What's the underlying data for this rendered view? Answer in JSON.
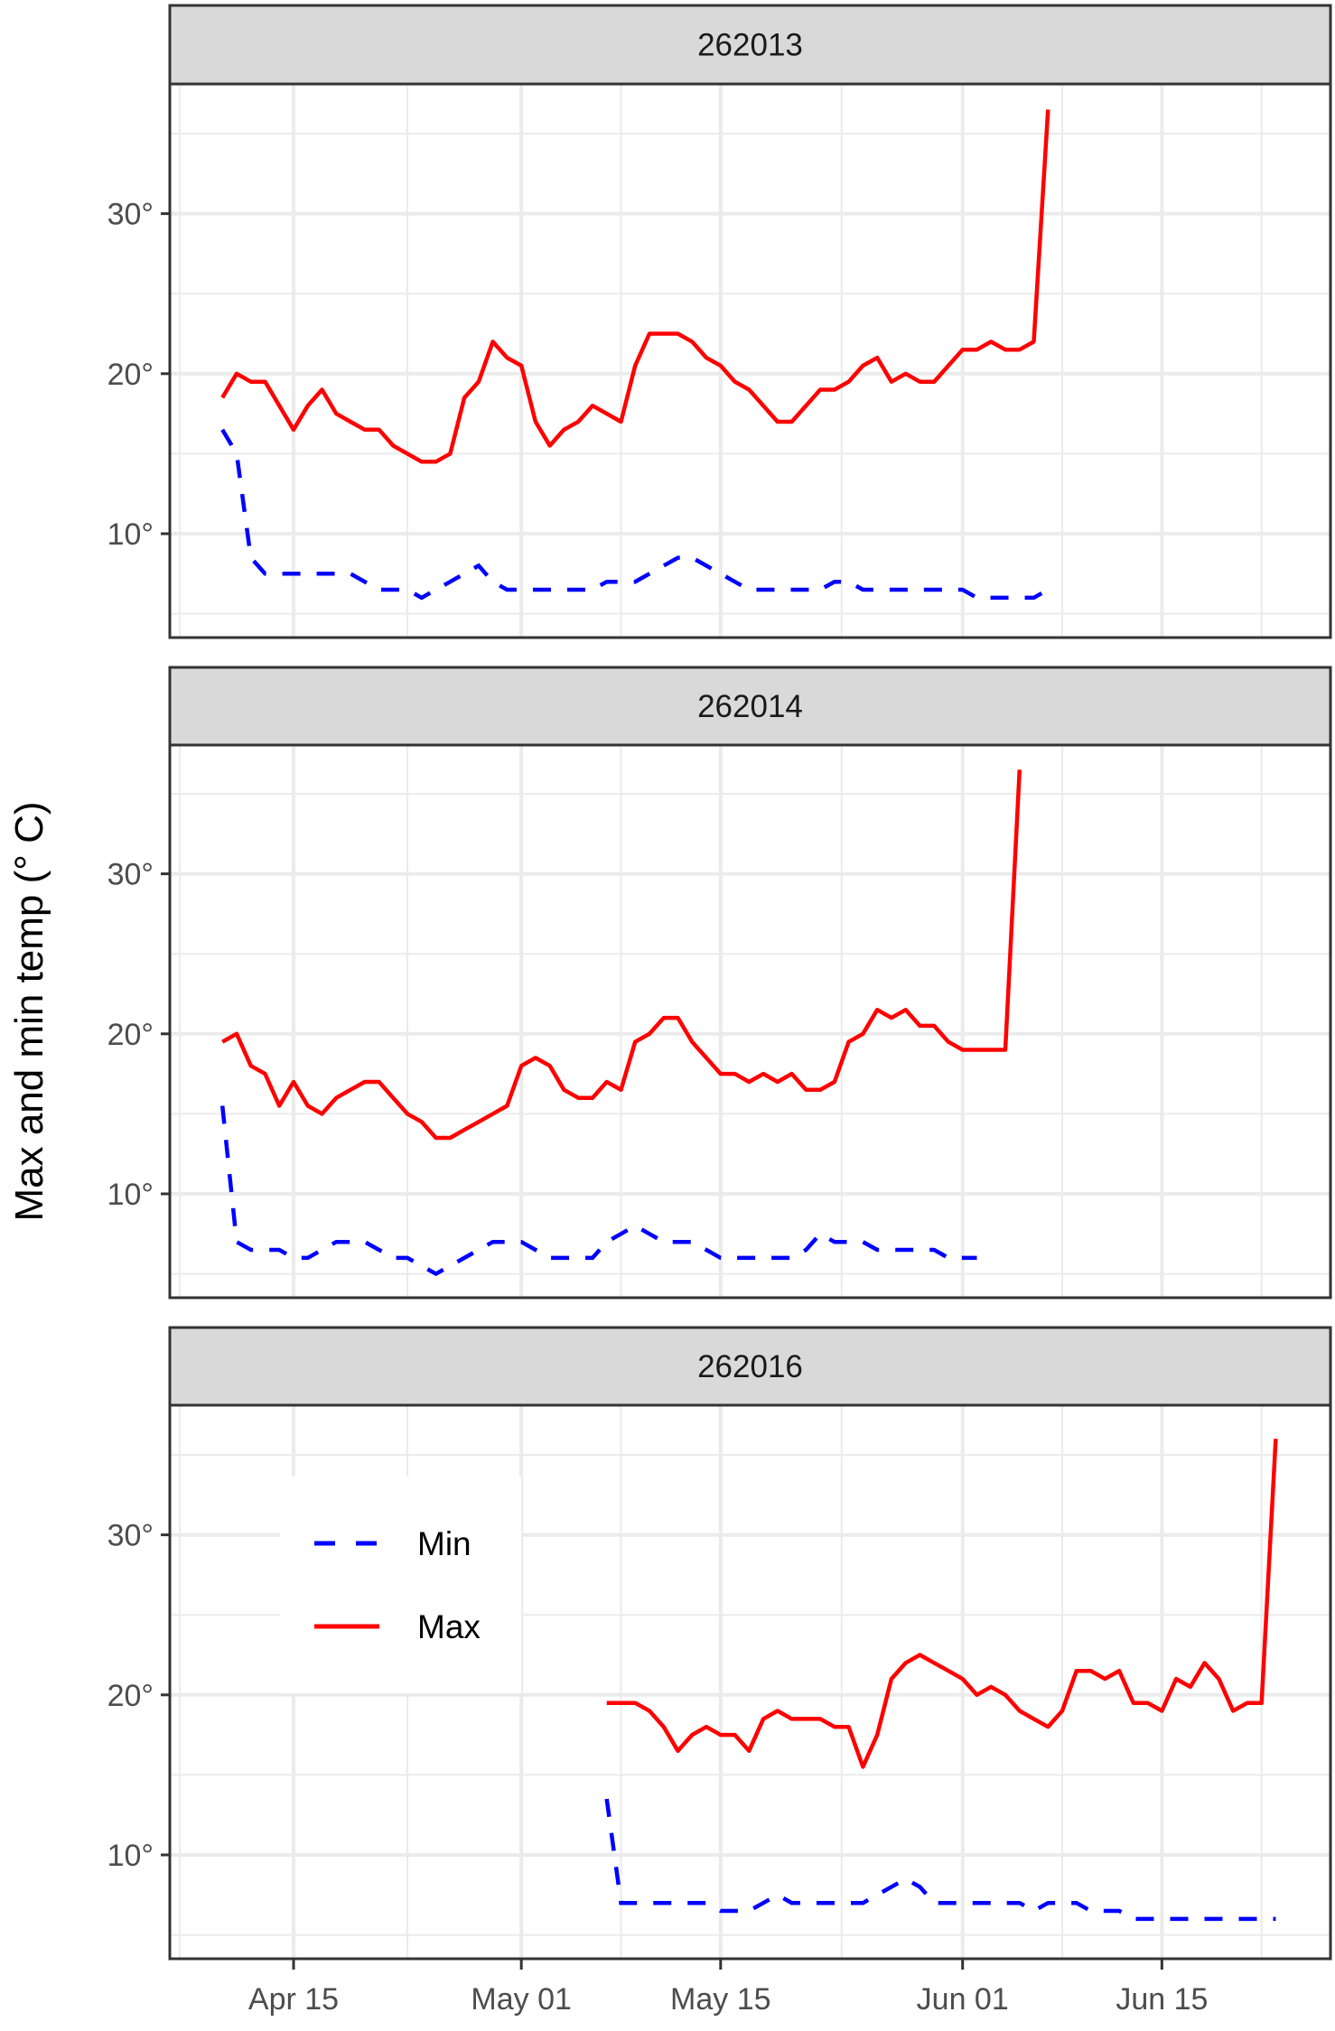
{
  "chart_data": {
    "type": "line",
    "title": "",
    "ylabel": "Max and min temp  (° C)",
    "xlabel": "",
    "x_tick_labels": [
      "Apr 15",
      "May 01",
      "May 15",
      "Jun 01",
      "Jun 15"
    ],
    "x_tick_days_from_apr15": [
      0,
      16,
      30,
      47,
      61
    ],
    "y_tick_labels": [
      "10°",
      "20°",
      "30°"
    ],
    "y_ticks": [
      10,
      20,
      30
    ],
    "ylim": [
      3.4,
      38
    ],
    "xlim_days_from_apr15": [
      -8.6,
      72.8
    ],
    "grid": true,
    "facet_by": "station",
    "legend": {
      "position": "inside bottom panel, top-left",
      "entries": [
        {
          "name": "Min",
          "color": "#0000FF",
          "linestyle": "dashed"
        },
        {
          "name": "Max",
          "color": "#FF0000",
          "linestyle": "solid"
        }
      ]
    },
    "panels": [
      {
        "label": "262013",
        "start_date": "Apr 10",
        "start_day": -5,
        "series": [
          {
            "name": "Max",
            "color": "#FF0000",
            "dash": "solid",
            "values": [
              18.5,
              20,
              19.5,
              19.5,
              18,
              16.5,
              18,
              19,
              17.5,
              17,
              16.5,
              16.5,
              15.5,
              15,
              14.5,
              14.5,
              15,
              18.5,
              19.5,
              22,
              21,
              20.5,
              17,
              15.5,
              16.5,
              17,
              18,
              17.5,
              17,
              20.5,
              22.5,
              22.5,
              22.5,
              22,
              21,
              20.5,
              19.5,
              19,
              18,
              17,
              17,
              18,
              19,
              19,
              19.5,
              20.5,
              21,
              19.5,
              20,
              19.5,
              19.5,
              20.5,
              21.5,
              21.5,
              22,
              21.5,
              21.5,
              22,
              36.5
            ]
          },
          {
            "name": "Min",
            "color": "#0000FF",
            "dash": "dashed",
            "values": [
              16.5,
              15,
              8.5,
              7.5,
              7.5,
              7.5,
              7.5,
              7.5,
              7.5,
              7.5,
              7,
              6.5,
              6.5,
              6.5,
              6,
              6.5,
              7,
              7.5,
              8,
              7,
              6.5,
              6.5,
              6.5,
              6.5,
              6.5,
              6.5,
              6.5,
              7,
              7,
              7,
              7.5,
              8,
              8.5,
              8.5,
              8,
              7.5,
              7,
              6.5,
              6.5,
              6.5,
              6.5,
              6.5,
              6.5,
              7,
              7,
              6.5,
              6.5,
              6.5,
              6.5,
              6.5,
              6.5,
              6.5,
              6.5,
              6,
              6,
              6,
              6,
              6,
              6.5
            ]
          }
        ]
      },
      {
        "label": "262014",
        "start_date": "Apr 10",
        "start_day": -5,
        "series": [
          {
            "name": "Max",
            "color": "#FF0000",
            "dash": "solid",
            "values": [
              19.5,
              20,
              18,
              17.5,
              15.5,
              17,
              15.5,
              15,
              16,
              16.5,
              17,
              17,
              16,
              15,
              14.5,
              13.5,
              13.5,
              14,
              14.5,
              15,
              15.5,
              18,
              18.5,
              18,
              16.5,
              16,
              16,
              17,
              16.5,
              19.5,
              20,
              21,
              21,
              19.5,
              18.5,
              17.5,
              17.5,
              17,
              17.5,
              17,
              17.5,
              16.5,
              16.5,
              17,
              19.5,
              20,
              21.5,
              21,
              21.5,
              20.5,
              20.5,
              19.5,
              19,
              19,
              19,
              19,
              36.5
            ]
          },
          {
            "name": "Min",
            "color": "#0000FF",
            "dash": "dashed",
            "values": [
              15.5,
              7,
              6.5,
              6.5,
              6.5,
              6,
              6,
              6.5,
              7,
              7,
              7,
              6.5,
              6,
              6,
              5.5,
              5,
              5.5,
              6,
              6.5,
              7,
              7,
              7,
              6.5,
              6,
              6,
              6,
              6,
              7,
              7.5,
              8,
              7.5,
              7,
              7,
              7,
              6.5,
              6,
              6,
              6,
              6,
              6,
              6,
              6.5,
              7.5,
              7,
              7,
              7,
              6.5,
              6.5,
              6.5,
              6.5,
              6.5,
              6,
              6,
              6
            ]
          }
        ]
      },
      {
        "label": "262016",
        "start_date": "May 07",
        "start_day": 22,
        "series": [
          {
            "name": "Max",
            "color": "#FF0000",
            "dash": "solid",
            "values": [
              19.5,
              19.5,
              19.5,
              19,
              18,
              16.5,
              17.5,
              18,
              17.5,
              17.5,
              16.5,
              18.5,
              19,
              18.5,
              18.5,
              18.5,
              18,
              18,
              15.5,
              17.5,
              21,
              22,
              22.5,
              22,
              21.5,
              21,
              20,
              20.5,
              20,
              19,
              18.5,
              18,
              19,
              21.5,
              21.5,
              21,
              21.5,
              19.5,
              19.5,
              19,
              21,
              20.5,
              22,
              21,
              19,
              19.5,
              19.5,
              36
            ]
          },
          {
            "name": "Min",
            "color": "#0000FF",
            "dash": "dashed",
            "values": [
              13.5,
              7,
              7,
              7,
              7,
              7,
              7,
              7,
              6.5,
              6.5,
              6.5,
              7,
              7.5,
              7,
              7,
              7,
              7,
              7,
              7,
              7.5,
              8,
              8.5,
              8,
              7,
              7,
              7,
              7,
              7,
              7,
              7,
              6.5,
              7,
              7,
              7,
              6.5,
              6.5,
              6.5,
              6,
              6,
              6,
              6,
              6,
              6,
              6,
              6,
              6,
              6,
              6
            ]
          }
        ]
      }
    ]
  },
  "colors": {
    "max_line": "#FF0000",
    "min_line": "#0000FF",
    "strip_bg": "#D9D9D9",
    "grid": "#EBEBEB",
    "frame": "#333333"
  }
}
